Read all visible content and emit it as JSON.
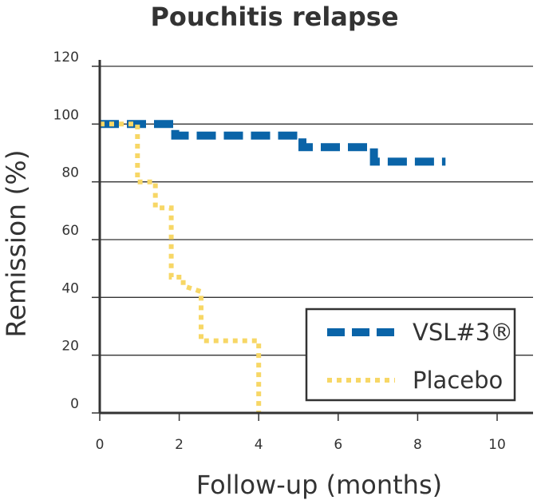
{
  "chart_data": {
    "type": "line",
    "title": "Pouchitis relapse",
    "xlabel": "Follow-up (months)",
    "ylabel": "Remission (%)",
    "xlim": [
      0,
      10
    ],
    "ylim": [
      0,
      120
    ],
    "xticks": [
      0,
      2,
      4,
      6,
      8,
      10
    ],
    "yticks": [
      0,
      20,
      40,
      60,
      80,
      100,
      120
    ],
    "grid": "horizontal",
    "legend_position": "bottom-right",
    "series": [
      {
        "name": "VSL#3®",
        "style": "dashed",
        "color": "#0a64a8",
        "points": [
          [
            0,
            100
          ],
          [
            1.9,
            100
          ],
          [
            1.9,
            96
          ],
          [
            5.1,
            96
          ],
          [
            5.1,
            92
          ],
          [
            6.9,
            92
          ],
          [
            6.9,
            87
          ],
          [
            8.7,
            87
          ]
        ]
      },
      {
        "name": "Placebo",
        "style": "dotted",
        "color": "#f7d766",
        "points": [
          [
            0,
            100
          ],
          [
            0.95,
            100
          ],
          [
            0.95,
            80
          ],
          [
            1.4,
            80
          ],
          [
            1.4,
            71
          ],
          [
            1.8,
            71
          ],
          [
            1.8,
            47
          ],
          [
            2.1,
            47
          ],
          [
            2.1,
            44
          ],
          [
            2.55,
            42
          ],
          [
            2.55,
            25
          ],
          [
            4,
            25
          ],
          [
            4,
            0
          ]
        ]
      }
    ]
  }
}
